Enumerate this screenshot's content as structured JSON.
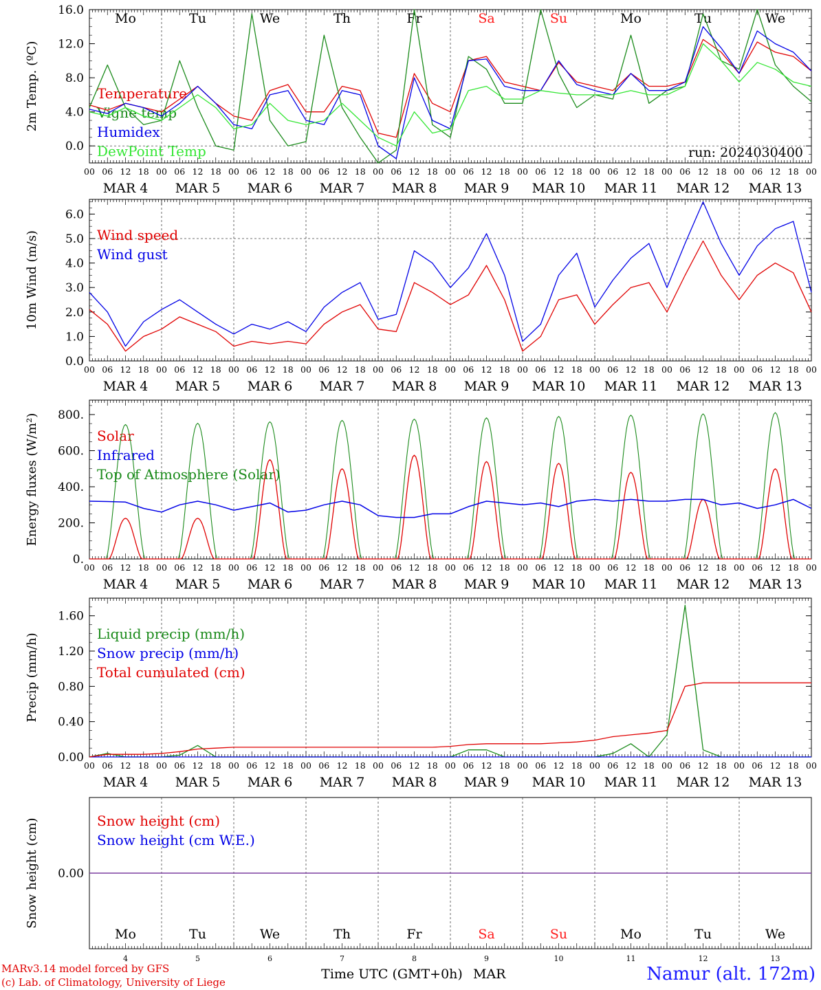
{
  "days": {
    "weekday_labels": [
      "Mo",
      "Tu",
      "We",
      "Th",
      "Fr",
      "Sa",
      "Su",
      "Mo",
      "Tu",
      "We"
    ],
    "weekend_flags": [
      false,
      false,
      false,
      false,
      false,
      true,
      true,
      false,
      false,
      false
    ],
    "date_labels": [
      "MAR  4",
      "MAR  5",
      "MAR  6",
      "MAR  7",
      "MAR  8",
      "MAR  9",
      "MAR 10",
      "MAR 11",
      "MAR 12",
      "MAR 13"
    ],
    "day_numbers": [
      "4",
      "5",
      "6",
      "7",
      "8",
      "9",
      "10",
      "11",
      "12",
      "13"
    ],
    "hour_labels": [
      "00",
      "06",
      "12",
      "18"
    ],
    "final_hour_label": "00"
  },
  "colors": {
    "red": "#e00000",
    "blue": "#0000e6",
    "green": "#1a8a1a",
    "light_green": "#33e633",
    "purple": "#7b3fa0",
    "weekend": "#ff1a1a",
    "axis": "#000000"
  },
  "time_axis_label": "Time UTC (GMT+0h)",
  "time_axis_month": "MAR",
  "footer": {
    "model": "MARv3.14 model forced by GFS",
    "credit": "(c) Lab. of Climatology, University of Liege",
    "station": "Namur (alt. 172m)"
  },
  "chart_data": [
    {
      "type": "line",
      "ylabel": "2m Temp. (ºC)",
      "ylim": [
        -2,
        16
      ],
      "yticks": [
        "0.0",
        "4.0",
        "8.0",
        "12.0",
        "16.0"
      ],
      "ytick_values": [
        0,
        4,
        8,
        12,
        16
      ],
      "ref_line": 0,
      "run_label": "run: 2024030400",
      "x_unit": "hours since Mar 4 00 UTC",
      "x": [
        0,
        6,
        12,
        18,
        24,
        30,
        36,
        42,
        48,
        54,
        60,
        66,
        72,
        78,
        84,
        90,
        96,
        102,
        108,
        114,
        120,
        126,
        132,
        138,
        144,
        150,
        156,
        162,
        168,
        174,
        180,
        186,
        192,
        198,
        204,
        210,
        216,
        222,
        228,
        234,
        240
      ],
      "series": [
        {
          "name": "Temperature",
          "color": "red",
          "values": [
            4.8,
            4.2,
            5.0,
            4.5,
            4.0,
            5.5,
            7.0,
            5.0,
            3.5,
            3.0,
            6.5,
            7.2,
            4.0,
            4.0,
            7.0,
            6.5,
            1.5,
            1.0,
            8.5,
            5.0,
            4.0,
            10.0,
            10.5,
            7.5,
            7.0,
            6.5,
            9.8,
            7.5,
            7.0,
            6.5,
            8.5,
            7.0,
            7.0,
            7.5,
            12.5,
            11.0,
            8.5,
            12.2,
            11.0,
            10.5,
            8.8
          ]
        },
        {
          "name": "Vigne temp",
          "color": "green",
          "values": [
            4.5,
            9.5,
            4.5,
            2.5,
            3.0,
            10.0,
            4.5,
            0.0,
            -0.5,
            15.5,
            3.0,
            0.0,
            0.5,
            13.0,
            4.5,
            1.0,
            -2.5,
            -0.5,
            16.0,
            2.5,
            1.0,
            10.5,
            9.0,
            5.0,
            5.0,
            16.0,
            8.5,
            4.5,
            6.0,
            5.5,
            13.0,
            5.0,
            6.5,
            7.0,
            15.5,
            10.0,
            9.0,
            16.0,
            9.5,
            7.0,
            5.2
          ]
        },
        {
          "name": "Humidex",
          "color": "blue",
          "values": [
            4.3,
            3.8,
            5.0,
            4.5,
            3.5,
            5.0,
            7.0,
            5.0,
            2.5,
            2.0,
            6.0,
            6.5,
            3.0,
            2.5,
            6.5,
            6.0,
            0.0,
            -1.5,
            8.0,
            3.0,
            2.0,
            10.0,
            10.2,
            7.0,
            6.5,
            6.5,
            10.0,
            7.2,
            6.5,
            6.0,
            8.5,
            6.5,
            6.5,
            7.5,
            14.0,
            11.5,
            8.5,
            13.5,
            12.0,
            11.0,
            8.8
          ]
        },
        {
          "name": "DewPoint Temp",
          "color": "light_green",
          "values": [
            4.0,
            3.5,
            4.5,
            3.5,
            3.0,
            4.5,
            6.0,
            4.5,
            2.0,
            2.5,
            5.0,
            3.0,
            2.5,
            3.0,
            5.0,
            3.0,
            1.0,
            0.0,
            4.0,
            1.5,
            2.0,
            6.5,
            7.0,
            5.5,
            5.5,
            6.5,
            6.2,
            6.0,
            6.0,
            6.0,
            6.5,
            6.0,
            6.0,
            7.0,
            12.0,
            10.0,
            7.5,
            9.8,
            9.0,
            7.5,
            7.0
          ]
        }
      ]
    },
    {
      "type": "line",
      "ylabel": "10m Wind (m/s)",
      "ylim": [
        0,
        6.6
      ],
      "yticks": [
        "0.0",
        "1.0",
        "2.0",
        "3.0",
        "4.0",
        "5.0",
        "6.0"
      ],
      "ytick_values": [
        0,
        1,
        2,
        3,
        4,
        5,
        6
      ],
      "ref_line": 5,
      "x": [
        0,
        6,
        12,
        18,
        24,
        30,
        36,
        42,
        48,
        54,
        60,
        66,
        72,
        78,
        84,
        90,
        96,
        102,
        108,
        114,
        120,
        126,
        132,
        138,
        144,
        150,
        156,
        162,
        168,
        174,
        180,
        186,
        192,
        198,
        204,
        210,
        216,
        222,
        228,
        234,
        240
      ],
      "series": [
        {
          "name": "Wind speed",
          "color": "red",
          "values": [
            2.1,
            1.5,
            0.4,
            1.0,
            1.3,
            1.8,
            1.5,
            1.2,
            0.6,
            0.8,
            0.7,
            0.8,
            0.7,
            1.5,
            2.0,
            2.3,
            1.3,
            1.2,
            3.2,
            2.8,
            2.3,
            2.7,
            3.9,
            2.5,
            0.4,
            1.0,
            2.5,
            2.7,
            1.5,
            2.3,
            3.0,
            3.2,
            2.0,
            3.5,
            4.9,
            3.5,
            2.5,
            3.5,
            4.0,
            3.6,
            2.0
          ]
        },
        {
          "name": "Wind gust",
          "color": "blue",
          "values": [
            2.8,
            2.0,
            0.6,
            1.6,
            2.1,
            2.5,
            2.0,
            1.5,
            1.1,
            1.5,
            1.3,
            1.6,
            1.2,
            2.2,
            2.8,
            3.2,
            1.7,
            1.9,
            4.5,
            4.0,
            3.0,
            3.8,
            5.2,
            3.5,
            0.8,
            1.5,
            3.5,
            4.4,
            2.2,
            3.3,
            4.2,
            4.8,
            3.0,
            4.8,
            6.5,
            4.8,
            3.5,
            4.7,
            5.4,
            5.7,
            2.8
          ]
        }
      ]
    },
    {
      "type": "line",
      "ylabel": "Energy fluxes (W/m²)",
      "ylim": [
        0,
        880
      ],
      "yticks": [
        "0.",
        "200.",
        "400.",
        "600.",
        "800."
      ],
      "ytick_values": [
        0,
        200,
        400,
        600,
        800
      ],
      "toa_peaks": [
        745,
        752,
        760,
        768,
        775,
        782,
        790,
        797,
        804,
        811
      ],
      "solar_peaks": [
        225,
        225,
        550,
        500,
        575,
        540,
        530,
        480,
        330,
        500
      ],
      "series": [
        {
          "name": "Solar",
          "color": "red"
        },
        {
          "name": "Infrared",
          "color": "blue",
          "x": [
            0,
            6,
            12,
            18,
            24,
            30,
            36,
            42,
            48,
            54,
            60,
            66,
            72,
            78,
            84,
            90,
            96,
            102,
            108,
            114,
            120,
            126,
            132,
            138,
            144,
            150,
            156,
            162,
            168,
            174,
            180,
            186,
            192,
            198,
            204,
            210,
            216,
            222,
            228,
            234,
            240
          ],
          "values": [
            320,
            318,
            315,
            280,
            260,
            300,
            320,
            300,
            270,
            290,
            310,
            260,
            270,
            300,
            320,
            300,
            240,
            230,
            230,
            250,
            250,
            290,
            320,
            310,
            300,
            310,
            290,
            320,
            330,
            320,
            330,
            320,
            320,
            330,
            330,
            300,
            310,
            280,
            300,
            330,
            280
          ]
        },
        {
          "name": "Top of Atmosphere (Solar)",
          "color": "green"
        }
      ]
    },
    {
      "type": "line",
      "ylabel": "Precip (mm/h)",
      "ylim": [
        0,
        1.8
      ],
      "yticks": [
        "0.00",
        "0.40",
        "0.80",
        "1.20",
        "1.60"
      ],
      "ytick_values": [
        0,
        0.4,
        0.8,
        1.2,
        1.6
      ],
      "x": [
        0,
        6,
        12,
        18,
        24,
        30,
        36,
        42,
        48,
        54,
        60,
        66,
        72,
        78,
        84,
        90,
        96,
        102,
        108,
        114,
        120,
        126,
        132,
        138,
        144,
        150,
        156,
        162,
        168,
        174,
        180,
        186,
        192,
        198,
        204,
        210,
        216,
        222,
        228,
        234,
        240
      ],
      "series": [
        {
          "name": "Liquid precip (mm/h)",
          "color": "green",
          "values": [
            0.0,
            0.04,
            0.0,
            0.0,
            0.0,
            0.02,
            0.13,
            0.0,
            0.0,
            0.0,
            0.0,
            0.0,
            0.0,
            0.0,
            0.0,
            0.0,
            0.0,
            0.0,
            0.0,
            0.0,
            0.0,
            0.08,
            0.08,
            0.0,
            0.0,
            0.0,
            0.0,
            0.0,
            0.0,
            0.04,
            0.15,
            0.0,
            0.25,
            1.72,
            0.08,
            0.0,
            0.0,
            0.0,
            0.0,
            0.0,
            0.0
          ]
        },
        {
          "name": "Snow precip (mm/h)",
          "color": "blue",
          "values": [
            0,
            0,
            0,
            0,
            0,
            0,
            0,
            0,
            0,
            0,
            0,
            0,
            0,
            0,
            0,
            0,
            0,
            0,
            0,
            0,
            0,
            0,
            0,
            0,
            0,
            0,
            0,
            0,
            0,
            0,
            0,
            0,
            0,
            0,
            0,
            0,
            0,
            0,
            0,
            0,
            0
          ]
        },
        {
          "name": "Total cumulated (cm)",
          "color": "red",
          "values": [
            0.0,
            0.03,
            0.03,
            0.03,
            0.04,
            0.06,
            0.09,
            0.1,
            0.11,
            0.11,
            0.11,
            0.11,
            0.11,
            0.11,
            0.11,
            0.11,
            0.11,
            0.11,
            0.11,
            0.11,
            0.12,
            0.14,
            0.15,
            0.15,
            0.15,
            0.15,
            0.16,
            0.17,
            0.19,
            0.23,
            0.25,
            0.27,
            0.3,
            0.8,
            0.84,
            0.84,
            0.84,
            0.84,
            0.84,
            0.84,
            0.84
          ]
        }
      ]
    },
    {
      "type": "line",
      "ylabel": "Snow height (cm)",
      "ylim": [
        -1,
        1
      ],
      "yticks": [
        "0.00"
      ],
      "ytick_values": [
        0
      ],
      "series": [
        {
          "name": "Snow height (cm)",
          "color": "red",
          "values": [
            0,
            0
          ]
        },
        {
          "name": "Snow height (cm W.E.)",
          "color": "blue",
          "values": [
            0,
            0
          ]
        }
      ]
    }
  ]
}
